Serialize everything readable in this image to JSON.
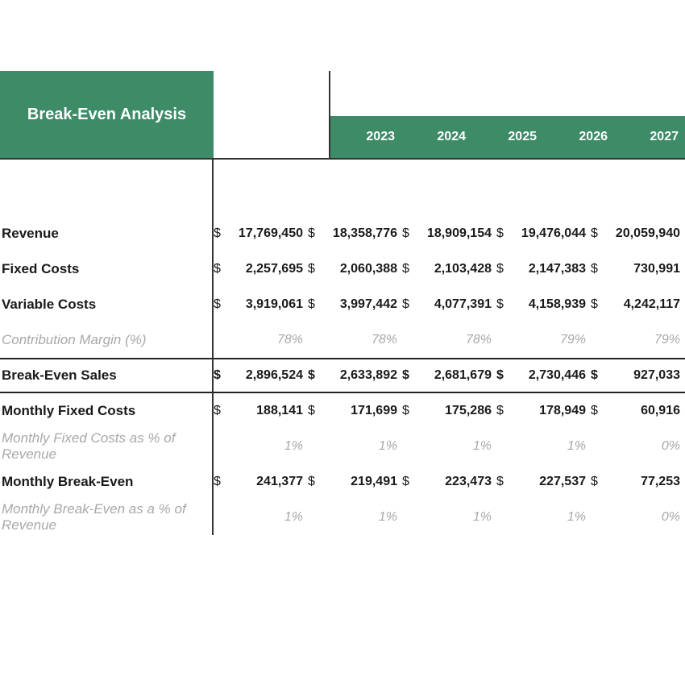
{
  "title": "Break-Even Analysis",
  "years": [
    "2023",
    "2024",
    "2025",
    "2026",
    "2027"
  ],
  "colors": {
    "header_bg": "#3d8b67",
    "header_text": "#ffffff",
    "muted_text": "#a8a8a8",
    "text": "#1a1a1a",
    "border": "#333333"
  },
  "rows": {
    "revenue": {
      "label": "Revenue",
      "currency": "$",
      "values": [
        "17,769,450",
        "18,358,776",
        "18,909,154",
        "19,476,044",
        "20,059,940"
      ]
    },
    "fixed_costs": {
      "label": "Fixed Costs",
      "currency": "$",
      "values": [
        "2,257,695",
        "2,060,388",
        "2,103,428",
        "2,147,383",
        "730,991"
      ]
    },
    "variable_costs": {
      "label": "Variable Costs",
      "currency": "$",
      "values": [
        "3,919,061",
        "3,997,442",
        "4,077,391",
        "4,158,939",
        "4,242,117"
      ]
    },
    "contribution_margin": {
      "label": "Contribution Margin (%)",
      "values": [
        "78%",
        "78%",
        "78%",
        "79%",
        "79%"
      ]
    },
    "break_even_sales": {
      "label": "Break-Even Sales",
      "currency": "$",
      "values": [
        "2,896,524",
        "2,633,892",
        "2,681,679",
        "2,730,446",
        "927,033"
      ]
    },
    "monthly_fixed_costs": {
      "label": "Monthly Fixed Costs",
      "currency": "$",
      "values": [
        "188,141",
        "171,699",
        "175,286",
        "178,949",
        "60,916"
      ]
    },
    "monthly_fixed_costs_pct": {
      "label": "Monthly Fixed Costs as % of Revenue",
      "values": [
        "1%",
        "1%",
        "1%",
        "1%",
        "0%"
      ]
    },
    "monthly_break_even": {
      "label": "Monthly Break-Even",
      "currency": "$",
      "values": [
        "241,377",
        "219,491",
        "223,473",
        "227,537",
        "77,253"
      ]
    },
    "monthly_break_even_pct": {
      "label": "Monthly Break-Even as a % of Revenue",
      "values": [
        "1%",
        "1%",
        "1%",
        "1%",
        "0%"
      ]
    }
  }
}
